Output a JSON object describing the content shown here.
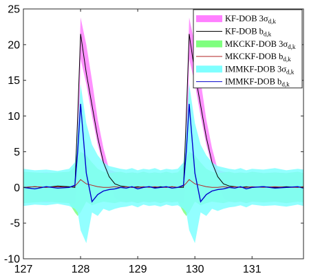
{
  "chart_data": {
    "type": "area",
    "xlabel": "",
    "ylabel": "",
    "xlim": [
      127,
      131.9
    ],
    "ylim": [
      -10,
      25
    ],
    "xticks": [
      127,
      128,
      129,
      130,
      131
    ],
    "yticks": [
      -10,
      -5,
      0,
      5,
      10,
      15,
      20,
      25
    ],
    "grid": false,
    "legend_position": "top-right",
    "x": [
      127.0,
      127.2,
      127.4,
      127.6,
      127.8,
      127.9,
      127.95,
      128.0,
      128.1,
      128.2,
      128.3,
      128.4,
      128.5,
      128.6,
      128.7,
      128.8,
      128.9,
      129.0,
      129.1,
      129.2,
      129.3,
      129.4,
      129.5,
      129.6,
      129.7,
      129.8,
      129.85,
      129.9,
      130.0,
      130.1,
      130.2,
      130.3,
      130.4,
      130.5,
      130.6,
      130.7,
      130.8,
      130.9,
      131.0,
      131.2,
      131.4,
      131.6,
      131.8,
      131.9
    ],
    "series": [
      {
        "name": "KF-DOB 3σd,k",
        "kind": "band",
        "color": "#ff7fff",
        "lower": [
          -2.2,
          -2.0,
          -2.1,
          -2.0,
          -2.2,
          -2.3,
          1.0,
          18.0,
          14.5,
          10.0,
          6.0,
          3.0,
          1.0,
          -1.5,
          -2.0,
          -2.1,
          -2.0,
          -2.2,
          -2.0,
          -2.1,
          -2.0,
          -2.2,
          -2.0,
          -2.1,
          -2.0,
          -2.2,
          1.0,
          18.0,
          14.5,
          10.0,
          6.0,
          3.0,
          1.0,
          -1.5,
          -2.0,
          -2.1,
          -2.0,
          -2.2,
          -2.0,
          -2.1,
          -2.0,
          -2.2,
          -2.0,
          -2.1
        ],
        "upper": [
          2.2,
          2.0,
          2.1,
          2.0,
          2.2,
          2.3,
          10.0,
          23.8,
          20.0,
          15.0,
          9.5,
          5.5,
          2.5,
          2.2,
          2.1,
          2.0,
          2.1,
          2.0,
          2.2,
          2.0,
          2.1,
          2.0,
          2.2,
          2.0,
          2.1,
          2.2,
          10.0,
          23.8,
          20.0,
          15.0,
          9.5,
          5.5,
          2.5,
          2.2,
          2.1,
          2.0,
          2.1,
          2.0,
          2.2,
          2.0,
          2.1,
          2.0,
          2.2,
          2.0
        ]
      },
      {
        "name": "KF-DOB bd,k",
        "kind": "line",
        "color": "#000000",
        "values": [
          0.0,
          0.1,
          0.0,
          0.2,
          0.1,
          0.0,
          10.0,
          21.5,
          16.0,
          11.5,
          7.0,
          3.5,
          1.5,
          0.5,
          0.2,
          0.1,
          0.0,
          0.1,
          0.0,
          0.1,
          0.0,
          0.1,
          0.0,
          0.1,
          0.0,
          0.0,
          10.0,
          21.5,
          16.0,
          11.5,
          7.0,
          3.5,
          1.5,
          0.5,
          0.2,
          0.1,
          0.0,
          0.1,
          0.0,
          0.1,
          0.0,
          0.1,
          0.0,
          0.1
        ]
      },
      {
        "name": "MKCKF-DOB 3σd,k",
        "kind": "band",
        "color": "#7fff7f",
        "lower": [
          -2.2,
          -2.1,
          -2.0,
          -2.1,
          -2.2,
          -3.5,
          -4.0,
          -3.5,
          -2.0,
          -2.5,
          -2.2,
          -2.0,
          -2.1,
          -2.2,
          -2.0,
          -2.1,
          -2.0,
          -2.2,
          -2.0,
          -2.1,
          -2.0,
          -2.2,
          -2.0,
          -2.1,
          -2.0,
          -3.5,
          -4.0,
          -3.5,
          -2.0,
          -2.5,
          -2.2,
          -2.0,
          -2.1,
          -2.2,
          -2.0,
          -2.1,
          -2.0,
          -2.2,
          -2.0,
          -2.1,
          -2.0,
          -2.2,
          -2.0,
          -2.1
        ],
        "upper": [
          2.2,
          2.1,
          2.0,
          2.1,
          2.2,
          3.0,
          4.0,
          5.0,
          4.5,
          3.5,
          2.6,
          2.2,
          2.0,
          2.1,
          2.2,
          2.0,
          2.1,
          2.0,
          2.2,
          2.0,
          2.1,
          2.0,
          2.2,
          2.0,
          2.1,
          3.0,
          4.0,
          5.0,
          4.5,
          3.5,
          2.6,
          2.2,
          2.0,
          2.1,
          2.2,
          2.0,
          2.1,
          2.0,
          2.2,
          2.0,
          2.1,
          2.0,
          2.2,
          2.0
        ]
      },
      {
        "name": "MKCKF-DOB bd,k",
        "kind": "line",
        "color": "#b22222",
        "values": [
          0.0,
          0.1,
          0.0,
          0.1,
          0.0,
          0.2,
          0.6,
          1.1,
          0.5,
          0.3,
          0.1,
          0.0,
          0.0,
          0.1,
          0.0,
          0.1,
          0.0,
          0.0,
          0.1,
          0.0,
          0.1,
          0.0,
          0.0,
          0.1,
          0.0,
          0.2,
          0.6,
          1.1,
          0.5,
          0.3,
          0.1,
          0.0,
          0.0,
          0.1,
          0.0,
          0.1,
          0.0,
          0.0,
          0.1,
          0.0,
          0.1,
          0.0,
          0.0,
          0.1
        ]
      },
      {
        "name": "IMMKF-DOB 3σd,k",
        "kind": "band",
        "color": "#7fffff",
        "lower": [
          -2.6,
          -2.4,
          -2.5,
          -2.3,
          -2.6,
          -3.0,
          -3.5,
          -6.0,
          -7.8,
          -3.5,
          -4.0,
          -3.0,
          -3.3,
          -3.0,
          -2.8,
          -2.7,
          -2.5,
          -2.8,
          -2.4,
          -2.6,
          -2.5,
          -2.7,
          -2.4,
          -2.6,
          -2.5,
          -3.0,
          -3.5,
          -6.0,
          -7.8,
          -3.5,
          -4.0,
          -3.0,
          -3.3,
          -3.0,
          -2.8,
          -2.7,
          -2.5,
          -2.8,
          -2.4,
          -2.6,
          -2.5,
          -2.7,
          -2.4,
          -2.6
        ],
        "upper": [
          2.6,
          2.4,
          2.5,
          2.3,
          2.6,
          3.5,
          8.0,
          14.5,
          9.0,
          6.0,
          4.5,
          3.5,
          3.0,
          2.8,
          2.6,
          2.5,
          2.7,
          2.4,
          2.6,
          2.5,
          2.7,
          2.4,
          2.6,
          2.5,
          2.6,
          3.5,
          8.0,
          14.5,
          9.0,
          6.0,
          4.5,
          3.5,
          3.0,
          2.8,
          2.6,
          2.5,
          2.7,
          2.4,
          2.6,
          2.5,
          2.7,
          2.4,
          2.6,
          2.5
        ]
      },
      {
        "name": "IMMKF-DOB bd,k",
        "kind": "line",
        "color": "#0000cc",
        "values": [
          0.0,
          -0.2,
          0.1,
          -0.1,
          0.0,
          0.3,
          5.0,
          11.7,
          2.0,
          -2.0,
          -1.0,
          -0.5,
          -0.3,
          -0.2,
          0.0,
          -0.1,
          0.1,
          -0.2,
          0.0,
          0.1,
          -0.1,
          0.0,
          0.1,
          -0.1,
          0.0,
          0.3,
          5.0,
          11.7,
          2.0,
          -2.0,
          -1.0,
          -0.5,
          -0.3,
          -0.2,
          0.0,
          -0.1,
          0.1,
          -0.2,
          0.0,
          0.1,
          -0.1,
          0.0,
          0.1,
          -0.1
        ]
      }
    ]
  },
  "legend": [
    {
      "main": "KF-DOB 3σ",
      "sub": "d,k",
      "swatch": "#ff7fff",
      "kind": "band"
    },
    {
      "main": "KF-DOB b",
      "sub": "d,k",
      "swatch": "#000000",
      "kind": "line"
    },
    {
      "main": "MKCKF-DOB 3σ",
      "sub": "d,k",
      "swatch": "#7fff7f",
      "kind": "band"
    },
    {
      "main": "MKCKF-DOB b",
      "sub": "d,k",
      "swatch": "#b22222",
      "kind": "line"
    },
    {
      "main": "IMMKF-DOB 3σ",
      "sub": "d,k",
      "swatch": "#7fffff",
      "kind": "band"
    },
    {
      "main": "IMMKF-DOB b",
      "sub": "d,k",
      "swatch": "#0000cc",
      "kind": "line"
    }
  ]
}
